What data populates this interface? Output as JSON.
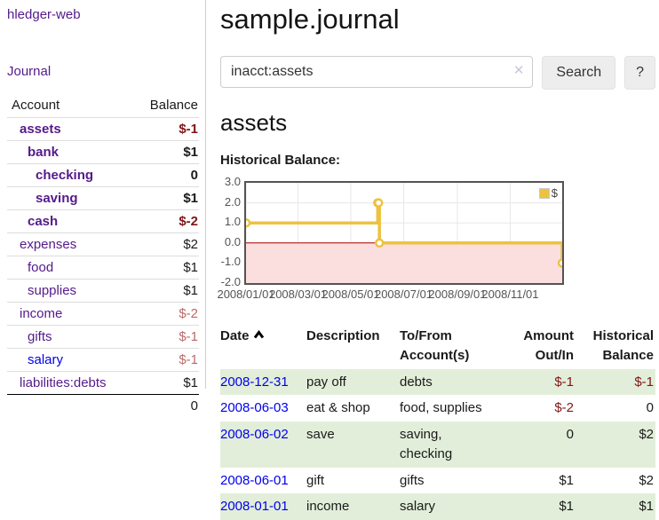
{
  "app": {
    "brand": "hledger-web",
    "nav": {
      "journal": "Journal"
    }
  },
  "colors": {
    "link_purple": "#551a8b",
    "link_blue": "#0000ee",
    "negative_strong": "#801515",
    "negative_soft": "#bb6a6a",
    "row_stripe_green": "#e2eed9",
    "chart_series_gold": "#edc240"
  },
  "icons": {
    "clear_search": "✕",
    "sort_ascending": "chevron-up"
  },
  "sidebar": {
    "header": {
      "account": "Account",
      "balance": "Balance"
    },
    "accounts": [
      {
        "name": "assets",
        "balance": "$-1"
      },
      {
        "name": "bank",
        "balance": "$1"
      },
      {
        "name": "checking",
        "balance": "0"
      },
      {
        "name": "saving",
        "balance": "$1"
      },
      {
        "name": "cash",
        "balance": "$-2"
      },
      {
        "name": "expenses",
        "balance": "$2"
      },
      {
        "name": "food",
        "balance": "$1"
      },
      {
        "name": "supplies",
        "balance": "$1"
      },
      {
        "name": "income",
        "balance": "$-2"
      },
      {
        "name": "gifts",
        "balance": "$-1"
      },
      {
        "name": "salary",
        "balance": "$-1"
      },
      {
        "name": "liabilities:debts",
        "balance": "$1"
      }
    ],
    "total": "0"
  },
  "main": {
    "title": "sample.journal",
    "search": {
      "value": "inacct:assets",
      "search_label": "Search",
      "help_label": "?"
    },
    "account_heading": "assets",
    "chart_label": "Historical Balance:"
  },
  "chart_data": {
    "type": "line",
    "step": true,
    "title": "Historical Balance:",
    "series": [
      {
        "name": "$",
        "color": "#edc240",
        "points": [
          [
            "2008-01-01",
            1
          ],
          [
            "2008-06-01",
            2
          ],
          [
            "2008-06-02",
            2
          ],
          [
            "2008-06-03",
            0
          ],
          [
            "2008-12-31",
            -1
          ]
        ]
      }
    ],
    "xlim": [
      "2008-01-01",
      "2008-12-31"
    ],
    "ylim": [
      -2.0,
      3.0
    ],
    "yticks": [
      "3.0",
      "2.0",
      "1.0",
      "0.0",
      "-1.0",
      "-2.0"
    ],
    "xticks": [
      "2008/01/01",
      "2008/03/01",
      "2008/05/01",
      "2008/07/01",
      "2008/09/01",
      "2008/11/01"
    ],
    "grid": true,
    "legend_position": "top-right",
    "negative_region_color": "#fbdfdf",
    "zero_line_color": "#aa0000"
  },
  "register": {
    "headers": [
      "Date",
      "Description",
      "To/From Account(s)",
      "Amount Out/In",
      "Historical Balance"
    ],
    "rows": [
      {
        "date": "2008-12-31",
        "description": "pay off",
        "accounts": "debts",
        "amount": "$-1",
        "balance": "$-1"
      },
      {
        "date": "2008-06-03",
        "description": "eat & shop",
        "accounts": "food, supplies",
        "amount": "$-2",
        "balance": "0"
      },
      {
        "date": "2008-06-02",
        "description": "save",
        "accounts": "saving, checking",
        "amount": "0",
        "balance": "$2"
      },
      {
        "date": "2008-06-01",
        "description": "gift",
        "accounts": "gifts",
        "amount": "$1",
        "balance": "$2"
      },
      {
        "date": "2008-01-01",
        "description": "income",
        "accounts": "salary",
        "amount": "$1",
        "balance": "$1"
      }
    ]
  }
}
